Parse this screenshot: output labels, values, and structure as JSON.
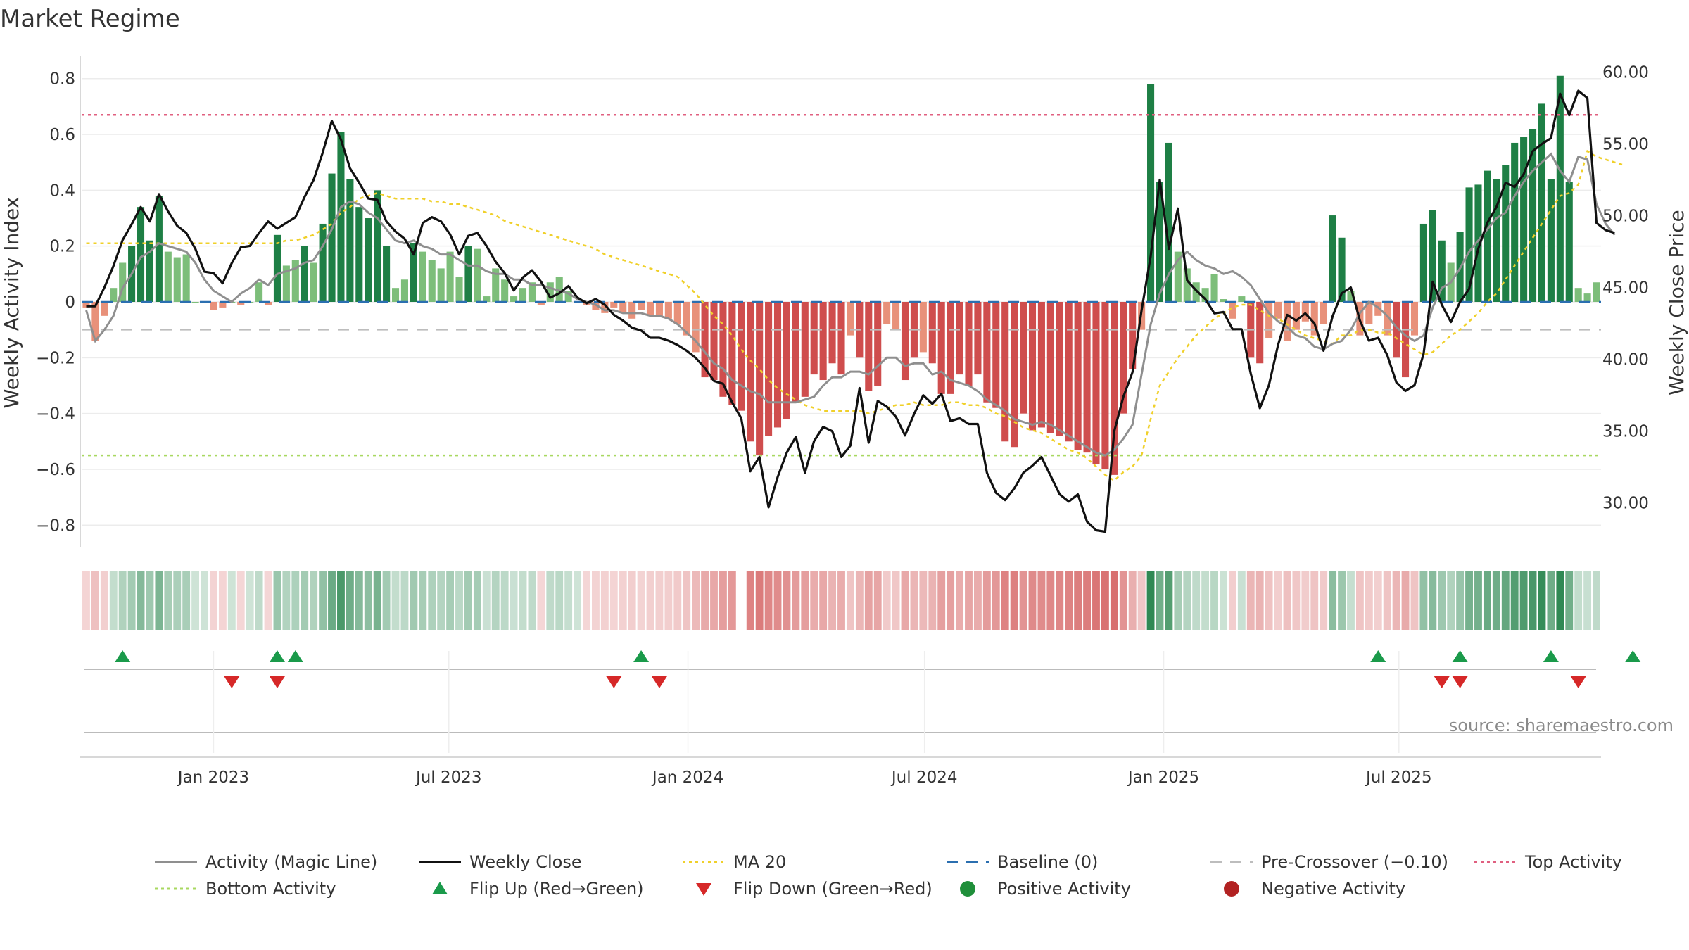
{
  "title": "Market Regime",
  "source": "source: sharemaestro.com",
  "colors": {
    "pos_strong": "#1e7f45",
    "pos_light": "#7dbe7a",
    "neg_strong": "#cf4d4d",
    "neg_light": "#e8917a",
    "magic_line": "#8f8f8f",
    "close_line": "#111111",
    "ma20": "#f0d02a",
    "baseline": "#2b6fb0",
    "pre_crossover": "#bdbdbd",
    "top_activity": "#e06080",
    "bottom_activity": "#a8d860",
    "flip_up": "#1a9a4a",
    "flip_down": "#d62828",
    "positive_dot": "#1f8f3a",
    "negative_dot": "#b22222"
  },
  "chart_data": {
    "type": "bar",
    "title": "Market Regime",
    "ylabel": "Weekly Activity Index",
    "y2label": "Weekly Close Price",
    "ylim": [
      -0.88,
      0.88
    ],
    "y2lim": [
      26.9,
      61.1
    ],
    "yticks": [
      "0.8",
      "0.6",
      "0.4",
      "0.2",
      "0",
      "−0.2",
      "−0.4",
      "−0.6",
      "−0.8"
    ],
    "yticks_values": [
      0.8,
      0.6,
      0.4,
      0.2,
      0,
      -0.2,
      -0.4,
      -0.6,
      -0.8
    ],
    "y2ticks": [
      "60.00",
      "55.00",
      "50.00",
      "45.00",
      "40.00",
      "35.00",
      "30.00"
    ],
    "y2ticks_values": [
      60,
      55,
      50,
      45,
      40,
      35,
      30
    ],
    "date_start": "2022-09-25",
    "xticks": [
      {
        "label": "Jan 2023",
        "date": "2023-01-01"
      },
      {
        "label": "Jul 2023",
        "date": "2023-07-01"
      },
      {
        "label": "Jan 2024",
        "date": "2024-01-01"
      },
      {
        "label": "Jul 2024",
        "date": "2024-07-01"
      },
      {
        "label": "Jan 2025",
        "date": "2025-01-01"
      },
      {
        "label": "Jul 2025",
        "date": "2025-07-01"
      }
    ],
    "activity": [
      -0.02,
      -0.14,
      -0.05,
      0.05,
      0.14,
      0.2,
      0.34,
      0.22,
      0.38,
      0.18,
      0.16,
      0.17,
      0.0,
      0.0,
      -0.03,
      -0.02,
      0.0,
      -0.01,
      0.0,
      0.07,
      -0.01,
      0.24,
      0.13,
      0.15,
      0.2,
      0.14,
      0.28,
      0.46,
      0.61,
      0.44,
      0.34,
      0.3,
      0.4,
      0.2,
      0.05,
      0.08,
      0.21,
      0.18,
      0.15,
      0.12,
      0.18,
      0.09,
      0.2,
      0.19,
      0.02,
      0.12,
      0.08,
      0.02,
      0.05,
      0.07,
      -0.01,
      0.07,
      0.09,
      0.04,
      0.0,
      -0.01,
      -0.03,
      -0.04,
      -0.02,
      -0.04,
      -0.06,
      -0.03,
      -0.05,
      -0.05,
      -0.06,
      -0.08,
      -0.12,
      -0.18,
      -0.27,
      -0.28,
      -0.34,
      -0.37,
      -0.39,
      -0.5,
      -0.55,
      -0.48,
      -0.45,
      -0.42,
      -0.36,
      -0.34,
      -0.26,
      -0.28,
      -0.22,
      -0.26,
      -0.12,
      -0.2,
      -0.32,
      -0.3,
      -0.08,
      -0.1,
      -0.28,
      -0.2,
      -0.18,
      -0.22,
      -0.33,
      -0.33,
      -0.26,
      -0.3,
      -0.26,
      -0.36,
      -0.38,
      -0.5,
      -0.52,
      -0.4,
      -0.46,
      -0.45,
      -0.47,
      -0.48,
      -0.5,
      -0.53,
      -0.54,
      -0.58,
      -0.6,
      -0.62,
      -0.4,
      -0.24,
      -0.1,
      0.78,
      0.43,
      0.57,
      0.18,
      0.12,
      0.07,
      0.05,
      0.1,
      0.01,
      -0.06,
      0.02,
      -0.2,
      -0.22,
      -0.13,
      -0.06,
      -0.14,
      -0.1,
      -0.07,
      -0.12,
      -0.08,
      0.31,
      0.23,
      0.04,
      -0.12,
      -0.08,
      -0.05,
      -0.12,
      -0.2,
      -0.27,
      -0.12,
      0.28,
      0.33,
      0.22,
      0.14,
      0.25,
      0.41,
      0.42,
      0.47,
      0.44,
      0.49,
      0.57,
      0.59,
      0.62,
      0.71,
      0.44,
      0.81,
      0.43,
      0.05,
      0.03,
      0.07
    ],
    "weekly_close": [
      43.7,
      43.7,
      45.0,
      46.5,
      48.3,
      49.4,
      50.6,
      49.6,
      51.5,
      50.3,
      49.3,
      48.8,
      47.7,
      46.1,
      46.0,
      45.3,
      46.7,
      47.8,
      47.9,
      48.8,
      49.6,
      49.1,
      49.5,
      49.9,
      51.3,
      52.5,
      54.4,
      56.6,
      55.3,
      53.3,
      52.3,
      51.2,
      51.1,
      49.6,
      48.9,
      48.4,
      47.3,
      49.5,
      49.9,
      49.6,
      48.7,
      47.3,
      48.6,
      48.8,
      47.9,
      46.8,
      46.0,
      44.8,
      45.7,
      46.2,
      45.4,
      44.3,
      44.6,
      45.1,
      44.3,
      43.9,
      44.2,
      43.8,
      43.1,
      42.7,
      42.2,
      42.0,
      41.5,
      41.5,
      41.3,
      41.0,
      40.6,
      40.1,
      39.4,
      38.5,
      38.3,
      37.0,
      35.9,
      32.2,
      33.2,
      29.7,
      31.8,
      33.5,
      34.6,
      32.1,
      34.3,
      35.3,
      35.0,
      33.2,
      34.0,
      38.0,
      34.2,
      37.1,
      36.7,
      36.0,
      34.7,
      36.2,
      37.5,
      36.9,
      37.6,
      35.7,
      35.9,
      35.5,
      35.5,
      32.1,
      30.7,
      30.2,
      31.0,
      32.1,
      32.6,
      33.2,
      31.9,
      30.6,
      30.1,
      30.6,
      28.7,
      28.1,
      28.0,
      35.0,
      37.4,
      39.1,
      43.4,
      47.2,
      52.5,
      47.7,
      50.5,
      45.5,
      44.8,
      44.2,
      43.2,
      43.3,
      42.1,
      42.1,
      39.0,
      36.6,
      38.2,
      41.0,
      43.1,
      42.7,
      43.2,
      42.5,
      40.6,
      43.0,
      44.6,
      45.0,
      42.7,
      41.3,
      41.5,
      40.3,
      38.4,
      37.8,
      38.2,
      40.4,
      45.4,
      43.8,
      42.6,
      44.0,
      44.9,
      47.7,
      49.5,
      50.6,
      52.3,
      52.0,
      52.9,
      54.5,
      55.0,
      55.4,
      58.5,
      57.0,
      58.7,
      58.2,
      49.5,
      49.0,
      48.8
    ],
    "magic_line": [
      -0.03,
      -0.14,
      -0.1,
      -0.05,
      0.05,
      0.1,
      0.16,
      0.18,
      0.21,
      0.2,
      0.19,
      0.18,
      0.14,
      0.08,
      0.04,
      0.02,
      0.0,
      0.03,
      0.05,
      0.08,
      0.06,
      0.1,
      0.11,
      0.12,
      0.14,
      0.15,
      0.2,
      0.26,
      0.34,
      0.36,
      0.35,
      0.32,
      0.3,
      0.26,
      0.22,
      0.21,
      0.22,
      0.2,
      0.19,
      0.17,
      0.17,
      0.15,
      0.13,
      0.13,
      0.11,
      0.1,
      0.1,
      0.08,
      0.08,
      0.06,
      0.06,
      0.05,
      0.04,
      0.03,
      0.01,
      0.0,
      -0.01,
      -0.03,
      -0.03,
      -0.04,
      -0.04,
      -0.04,
      -0.05,
      -0.05,
      -0.06,
      -0.08,
      -0.11,
      -0.14,
      -0.18,
      -0.22,
      -0.24,
      -0.28,
      -0.3,
      -0.32,
      -0.33,
      -0.36,
      -0.36,
      -0.36,
      -0.36,
      -0.35,
      -0.34,
      -0.3,
      -0.27,
      -0.27,
      -0.25,
      -0.25,
      -0.26,
      -0.23,
      -0.2,
      -0.2,
      -0.23,
      -0.22,
      -0.22,
      -0.26,
      -0.25,
      -0.28,
      -0.29,
      -0.3,
      -0.32,
      -0.35,
      -0.37,
      -0.39,
      -0.42,
      -0.43,
      -0.44,
      -0.43,
      -0.44,
      -0.46,
      -0.48,
      -0.5,
      -0.52,
      -0.54,
      -0.55,
      -0.53,
      -0.49,
      -0.44,
      -0.26,
      -0.08,
      0.03,
      0.1,
      0.15,
      0.18,
      0.15,
      0.13,
      0.12,
      0.1,
      0.11,
      0.09,
      0.06,
      0.01,
      -0.04,
      -0.07,
      -0.09,
      -0.12,
      -0.13,
      -0.16,
      -0.17,
      -0.15,
      -0.14,
      -0.1,
      -0.04,
      0.0,
      -0.02,
      -0.05,
      -0.09,
      -0.12,
      -0.14,
      -0.12,
      -0.02,
      0.05,
      0.07,
      0.12,
      0.18,
      0.22,
      0.26,
      0.3,
      0.32,
      0.38,
      0.43,
      0.47,
      0.5,
      0.53,
      0.47,
      0.43,
      0.52,
      0.51,
      0.35,
      0.28,
      0.24
    ],
    "ma20": [
      0.21,
      0.21,
      0.21,
      0.21,
      0.21,
      0.21,
      0.21,
      0.21,
      0.21,
      0.21,
      0.21,
      0.21,
      0.21,
      0.21,
      0.21,
      0.21,
      0.21,
      0.21,
      0.21,
      0.21,
      0.21,
      0.21,
      0.22,
      0.22,
      0.23,
      0.24,
      0.26,
      0.28,
      0.32,
      0.34,
      0.37,
      0.38,
      0.39,
      0.38,
      0.37,
      0.37,
      0.37,
      0.37,
      0.36,
      0.36,
      0.35,
      0.35,
      0.34,
      0.33,
      0.32,
      0.31,
      0.29,
      0.28,
      0.27,
      0.26,
      0.25,
      0.24,
      0.23,
      0.22,
      0.21,
      0.2,
      0.19,
      0.17,
      0.16,
      0.15,
      0.14,
      0.13,
      0.12,
      0.11,
      0.1,
      0.09,
      0.06,
      0.03,
      -0.01,
      -0.05,
      -0.08,
      -0.12,
      -0.17,
      -0.21,
      -0.24,
      -0.28,
      -0.31,
      -0.33,
      -0.35,
      -0.37,
      -0.38,
      -0.39,
      -0.39,
      -0.39,
      -0.39,
      -0.39,
      -0.4,
      -0.39,
      -0.38,
      -0.37,
      -0.37,
      -0.36,
      -0.37,
      -0.37,
      -0.37,
      -0.36,
      -0.36,
      -0.37,
      -0.37,
      -0.38,
      -0.4,
      -0.41,
      -0.43,
      -0.45,
      -0.46,
      -0.47,
      -0.49,
      -0.51,
      -0.53,
      -0.54,
      -0.56,
      -0.59,
      -0.62,
      -0.64,
      -0.61,
      -0.59,
      -0.55,
      -0.42,
      -0.3,
      -0.25,
      -0.2,
      -0.16,
      -0.12,
      -0.09,
      -0.06,
      -0.04,
      -0.02,
      -0.01,
      -0.01,
      -0.03,
      -0.05,
      -0.06,
      -0.08,
      -0.1,
      -0.12,
      -0.13,
      -0.14,
      -0.15,
      -0.12,
      -0.12,
      -0.1,
      -0.1,
      -0.11,
      -0.11,
      -0.13,
      -0.15,
      -0.17,
      -0.19,
      -0.18,
      -0.15,
      -0.12,
      -0.1,
      -0.07,
      -0.04,
      0.0,
      0.03,
      0.08,
      0.13,
      0.18,
      0.23,
      0.28,
      0.33,
      0.38,
      0.39,
      0.42,
      0.54,
      0.52,
      0.51,
      0.5,
      0.49
    ],
    "lines": [
      {
        "name": "Baseline (0)",
        "value": 0
      },
      {
        "name": "Pre-Crossover (−0.10)",
        "value": -0.1
      },
      {
        "name": "Top Activity",
        "value": 0.67
      },
      {
        "name": "Bottom Activity",
        "value": -0.55
      }
    ],
    "flip_up_weeks": [
      4,
      21,
      23,
      61,
      142,
      151,
      161,
      170
    ],
    "flip_down_weeks": [
      16,
      21,
      58,
      63,
      149,
      151,
      164
    ],
    "regime_strip_gap_weeks": [
      72
    ],
    "legend": [
      "Activity (Magic Line)",
      "Weekly Close",
      "MA 20",
      "Baseline (0)",
      "Pre-Crossover (−0.10)",
      "Top Activity",
      "Bottom Activity",
      "Flip Up (Red→Green)",
      "Flip Down (Green→Red)",
      "Positive Activity",
      "Negative Activity"
    ],
    "legend_placement": "bottom",
    "grid": true
  }
}
